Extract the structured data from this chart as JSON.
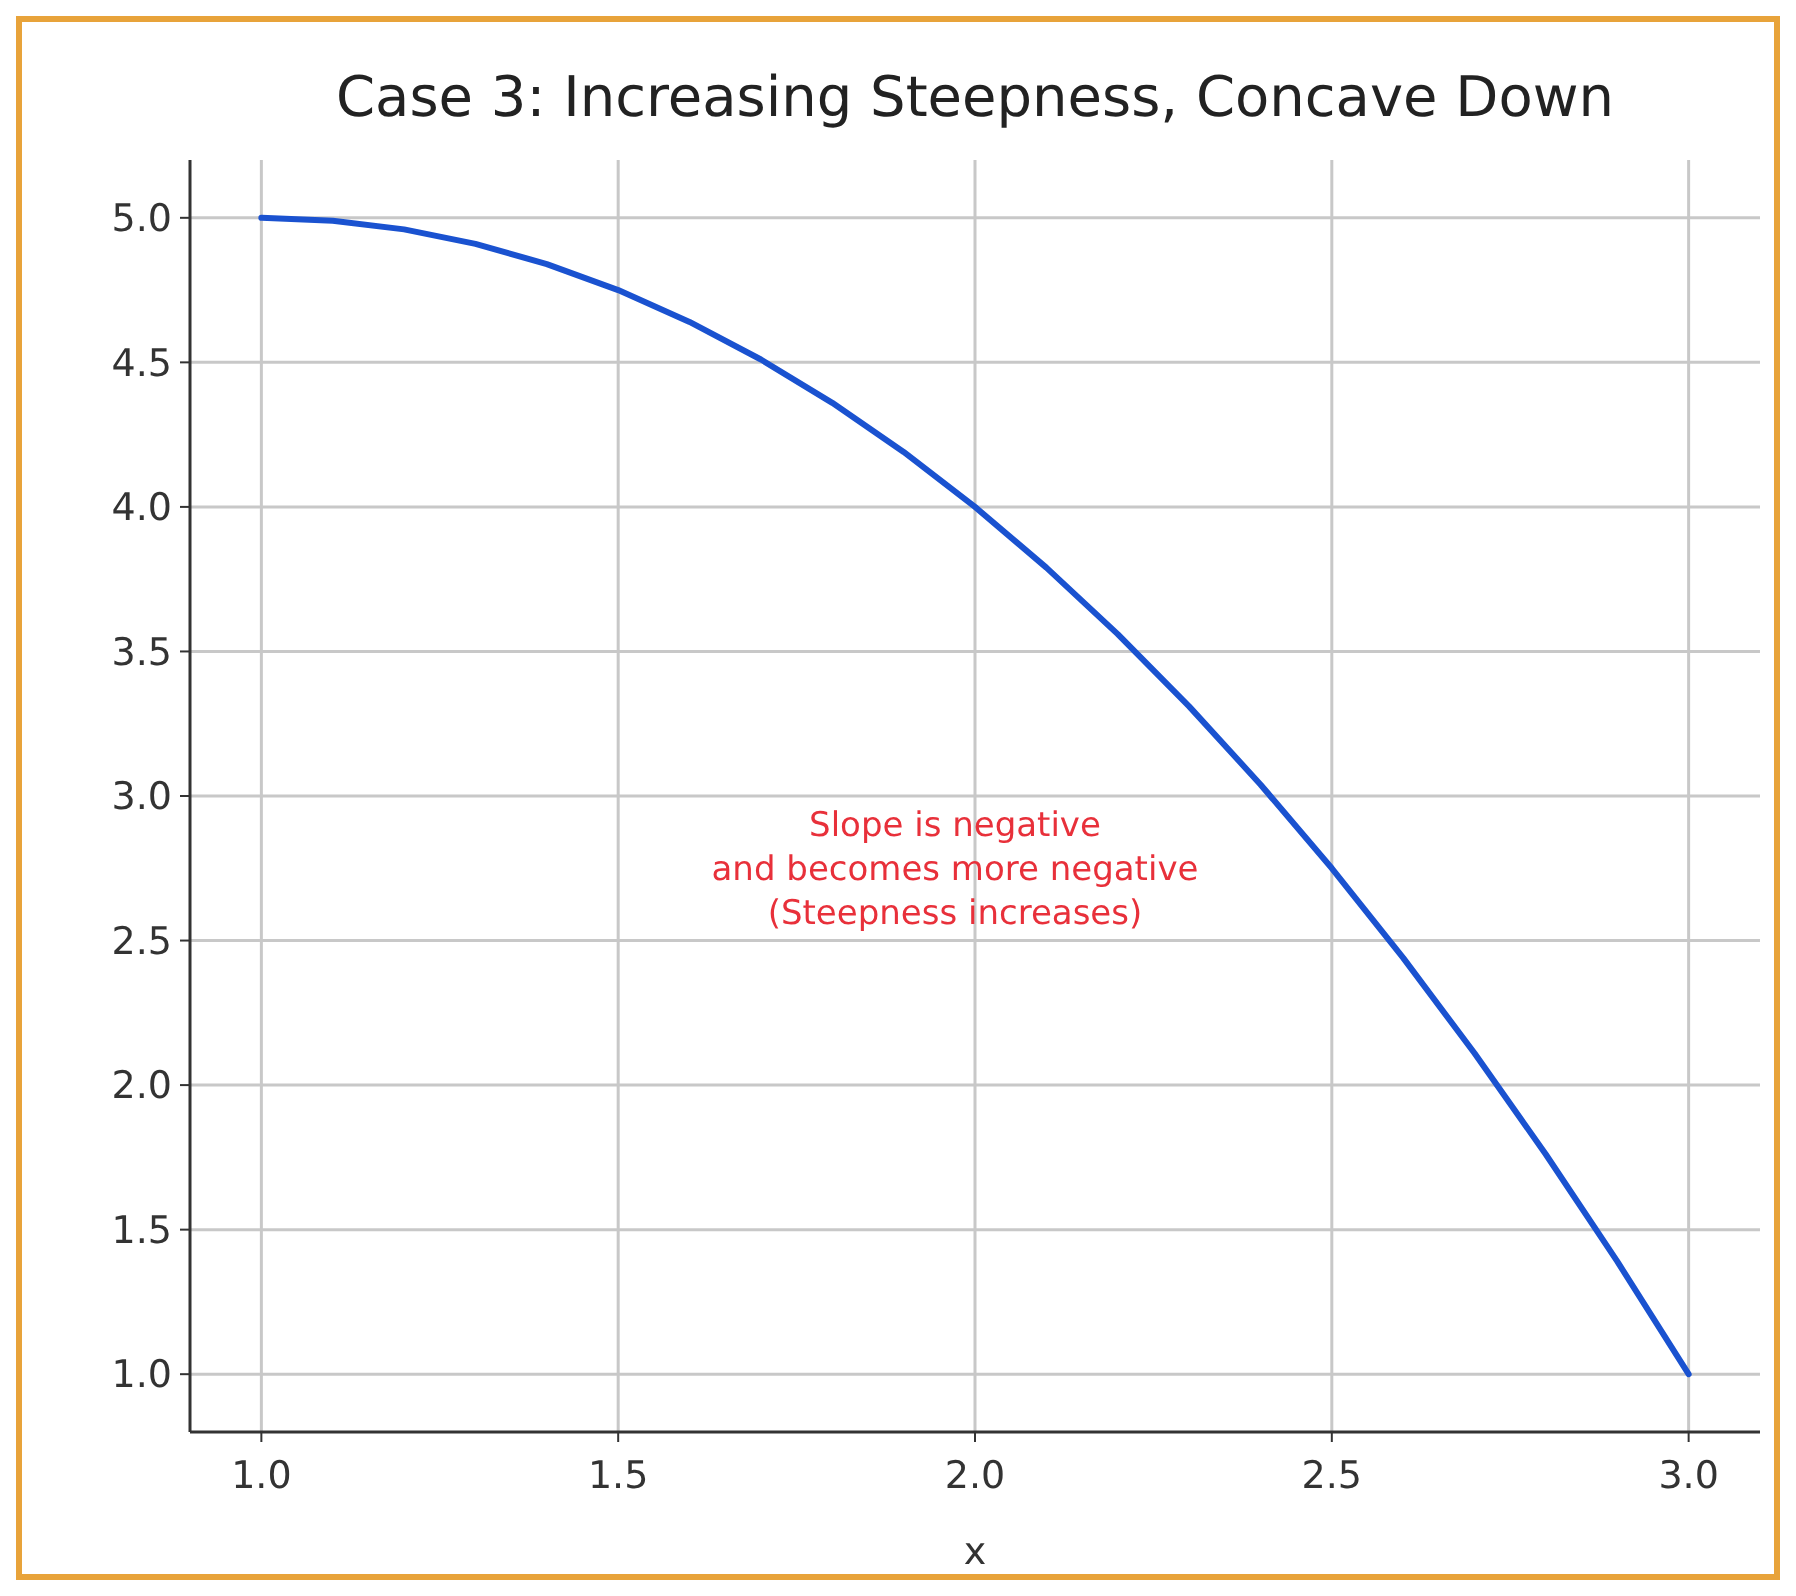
{
  "chart_data": {
    "type": "line",
    "title": "Case 3: Increasing Steepness, Concave Down",
    "xlabel": "x",
    "x": [
      1.0,
      1.1,
      1.2,
      1.3,
      1.4,
      1.5,
      1.6,
      1.7,
      1.8,
      1.9,
      2.0,
      2.1,
      2.2,
      2.3,
      2.4,
      2.5,
      2.6,
      2.7,
      2.8,
      2.9,
      3.0
    ],
    "series": [
      {
        "color": "#1a52d0",
        "values": [
          5.0,
          4.99,
          4.96,
          4.91,
          4.84,
          4.75,
          4.64,
          4.51,
          4.36,
          4.19,
          4.0,
          3.79,
          3.56,
          3.31,
          3.04,
          2.75,
          2.44,
          2.11,
          1.76,
          1.39,
          1.0
        ]
      }
    ],
    "xlim": [
      0.9,
      3.1
    ],
    "xticks": [
      {
        "value": 1.0,
        "label": "1.0"
      },
      1.5,
      {
        "value": 2.0,
        "label": "2.0"
      },
      2.5,
      {
        "value": 3.0,
        "label": "3.0"
      }
    ],
    "ylim": [
      0.8,
      5.2
    ],
    "yticks": [
      {
        "value": 1.0,
        "label": "1.0"
      },
      1.5,
      {
        "value": 2.0,
        "label": "2.0"
      },
      2.5,
      {
        "value": 3.0,
        "label": "3.0"
      },
      3.5,
      {
        "value": 4.0,
        "label": "4.0"
      },
      4.5,
      {
        "value": 5.0,
        "label": "5.0"
      }
    ],
    "grid": true,
    "marker": "none",
    "line_style": "solid",
    "annotations": [
      "Slope is negative\nand becomes more negative\n(Steepness increases)"
    ]
  }
}
